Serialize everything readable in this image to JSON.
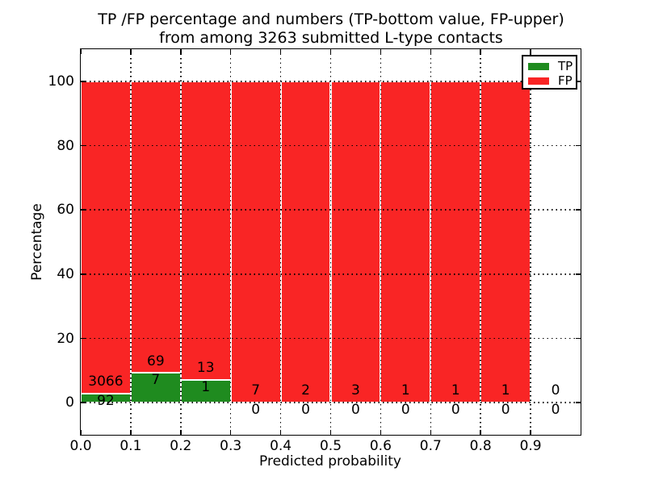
{
  "title": {
    "line1": "TP /FP percentage and numbers (TP-bottom value, FP-upper)",
    "line2": "from among 3263 submitted L-type contacts"
  },
  "chart_data": {
    "type": "bar",
    "stacked": true,
    "title": "TP /FP percentage and numbers (TP-bottom value, FP-upper)\nfrom among 3263 submitted L-type contacts",
    "xlabel": "Predicted probability",
    "ylabel": "Percentage",
    "xlim": [
      0.0,
      1.0
    ],
    "ylim": [
      -10,
      110
    ],
    "x_ticks": [
      "0.0",
      "0.1",
      "0.2",
      "0.3",
      "0.4",
      "0.5",
      "0.6",
      "0.7",
      "0.8",
      "0.9"
    ],
    "x_tick_values": [
      0.0,
      0.1,
      0.2,
      0.3,
      0.4,
      0.5,
      0.6,
      0.7,
      0.8,
      0.9
    ],
    "y_ticks": [
      "0",
      "20",
      "40",
      "60",
      "80",
      "100"
    ],
    "y_tick_values": [
      0,
      20,
      40,
      60,
      80,
      100
    ],
    "grid": "dotted",
    "total_contacts": 3263,
    "bins": [
      {
        "range": [
          0.0,
          0.1
        ],
        "tp": 92,
        "fp": 3066
      },
      {
        "range": [
          0.1,
          0.2
        ],
        "tp": 7,
        "fp": 69
      },
      {
        "range": [
          0.2,
          0.3
        ],
        "tp": 1,
        "fp": 13
      },
      {
        "range": [
          0.3,
          0.4
        ],
        "tp": 0,
        "fp": 7
      },
      {
        "range": [
          0.4,
          0.5
        ],
        "tp": 0,
        "fp": 2
      },
      {
        "range": [
          0.5,
          0.6
        ],
        "tp": 0,
        "fp": 3
      },
      {
        "range": [
          0.6,
          0.7
        ],
        "tp": 0,
        "fp": 1
      },
      {
        "range": [
          0.7,
          0.8
        ],
        "tp": 0,
        "fp": 1
      },
      {
        "range": [
          0.8,
          0.9
        ],
        "tp": 0,
        "fp": 1
      },
      {
        "range": [
          0.9,
          1.0
        ],
        "tp": 0,
        "fp": 0
      }
    ],
    "series_colors": {
      "tp": "#1f8b1f",
      "fp": "#f92525"
    },
    "legend": {
      "position": "upper-right",
      "entries": [
        {
          "label": "TP",
          "color": "#1f8b1f"
        },
        {
          "label": "FP",
          "color": "#f92525"
        }
      ]
    }
  }
}
